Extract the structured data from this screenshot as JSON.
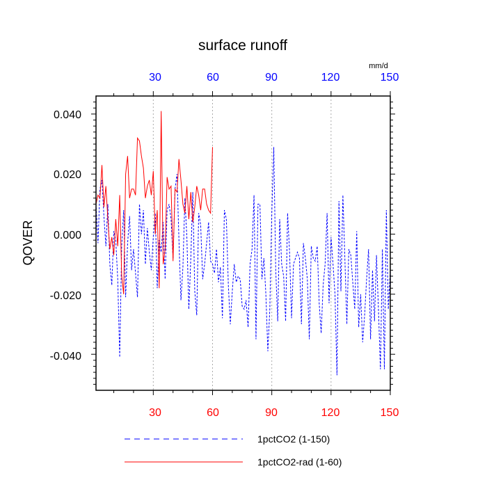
{
  "chart_data": {
    "type": "line",
    "title": "surface runoff",
    "units": "mm/d",
    "ylabel": "QOVER",
    "xlim": [
      1,
      150
    ],
    "ylim": [
      -0.052,
      0.046
    ],
    "grid": "vertical dotted at x ticks",
    "bottom_xticks": [
      "30",
      "60",
      "90",
      "120",
      "150"
    ],
    "top_xticks": [
      "30",
      "60",
      "90",
      "120",
      "150"
    ],
    "yticks": [
      "0.040",
      "0.020",
      "0.000",
      "-0.020",
      "-0.040"
    ],
    "legend_placement": "bottom",
    "colors": {
      "series1": "#0000ff",
      "series2": "#ff0000",
      "bottom_ticks": "#ff0000",
      "top_ticks": "#0000ff"
    },
    "series": [
      {
        "name": "1pctCO2 (1-150)",
        "style": "dashed",
        "color": "#0000ff",
        "start": 1,
        "values": [
          0.01,
          -0.003,
          0.015,
          0.018,
          0.006,
          -0.004,
          0.01,
          -0.01,
          -0.017,
          0.001,
          -0.002,
          -0.015,
          -0.041,
          -0.004,
          0.008,
          -0.021,
          -0.003,
          0.006,
          -0.012,
          -0.005,
          -0.013,
          -0.021,
          0.01,
          0.0,
          0.008,
          -0.01,
          0.002,
          -0.006,
          -0.012,
          -0.001,
          0.007,
          -0.018,
          -0.002,
          -0.006,
          0.004,
          -0.015,
          0.008,
          0.01,
          0.005,
          -0.008,
          0.015,
          0.02,
          -0.002,
          -0.022,
          -0.011,
          0.012,
          -0.001,
          -0.025,
          -0.008,
          0.014,
          -0.019,
          -0.027,
          0.007,
          0.003,
          -0.015,
          -0.01,
          -0.003,
          0.004,
          -0.009,
          -0.01,
          -0.013,
          -0.005,
          -0.016,
          -0.011,
          -0.028,
          0.008,
          0.005,
          -0.017,
          -0.03,
          -0.019,
          -0.01,
          -0.016,
          -0.014,
          -0.015,
          -0.024,
          -0.025,
          -0.022,
          -0.031,
          -0.01,
          -0.005,
          0.013,
          -0.035,
          0.01,
          0.01,
          -0.015,
          -0.008,
          -0.02,
          -0.039,
          -0.025,
          0.007,
          0.029,
          -0.012,
          -0.029,
          0.005,
          -0.01,
          -0.014,
          -0.029,
          0.007,
          -0.006,
          -0.028,
          -0.01,
          -0.008,
          -0.006,
          -0.008,
          -0.03,
          -0.003,
          -0.008,
          -0.015,
          -0.035,
          -0.004,
          -0.008,
          -0.009,
          -0.004,
          -0.023,
          -0.033,
          -0.017,
          -0.01,
          0.007,
          -0.023,
          -0.001,
          -0.01,
          -0.02,
          -0.047,
          0.011,
          -0.019,
          0.013,
          -0.008,
          -0.03,
          -0.005,
          -0.007,
          -0.016,
          -0.025,
          0.001,
          -0.031,
          -0.02,
          -0.036,
          -0.027,
          -0.015,
          -0.005,
          -0.035,
          -0.012,
          -0.029,
          -0.007,
          -0.025,
          -0.045,
          -0.005,
          -0.045,
          0.008,
          -0.025,
          -0.012
        ]
      },
      {
        "name": "1pctCO2-rad (1-60)",
        "style": "solid",
        "color": "#ff0000",
        "start": 1,
        "values": [
          0.01,
          0.013,
          0.012,
          0.023,
          0.009,
          0.016,
          0.005,
          -0.005,
          -0.001,
          -0.007,
          0.005,
          -0.004,
          0.013,
          -0.014,
          -0.02,
          0.02,
          0.026,
          0.012,
          0.015,
          0.015,
          0.013,
          0.032,
          0.031,
          0.026,
          0.022,
          0.012,
          0.016,
          0.018,
          0.013,
          0.021,
          0.0,
          0.008,
          -0.018,
          0.041,
          -0.01,
          -0.005,
          0.019,
          0.015,
          0.016,
          -0.009,
          0.015,
          0.014,
          0.025,
          0.018,
          0.01,
          0.007,
          0.016,
          0.005,
          0.014,
          0.004,
          0.009,
          0.016,
          0.013,
          0.008,
          0.015,
          0.015,
          0.01,
          0.008,
          0.007,
          0.029
        ]
      }
    ]
  }
}
